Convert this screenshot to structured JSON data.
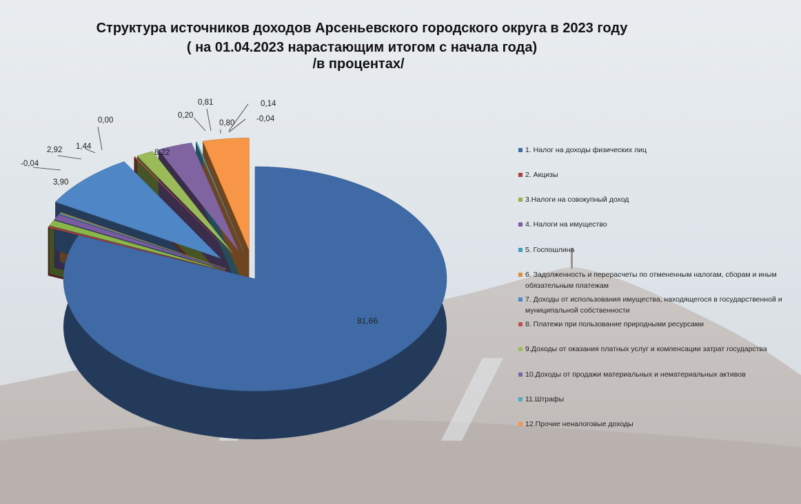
{
  "title": {
    "line1": "Структура источников доходов Арсеньевского городского округа в 2023 году",
    "line2": "( на 01.04.2023 нарастающим итогом с начала года)",
    "line3": "/в процентах/"
  },
  "chart_data": {
    "type": "pie",
    "style": "3d-exploded",
    "legend_position": "right",
    "slices": [
      {
        "name": "1. Налог на  доходы физических лиц",
        "value": 81.66,
        "label": "81,66",
        "color": "#3f6aa6"
      },
      {
        "name": "2. Акцизы",
        "value": 0.2,
        "label": "0,20",
        "color": "#b0413e"
      },
      {
        "name": "3.Налоги на совокупный доход",
        "value": 0.81,
        "label": "0,81",
        "color": "#8cb64a"
      },
      {
        "name": "4. Налоги на имущество",
        "value": 0.8,
        "label": "0,80",
        "color": "#7a5ba0"
      },
      {
        "name": "5. Госпошлина",
        "value": 0.14,
        "label": "0,14",
        "color": "#3aa0b8"
      },
      {
        "name": "6. Задолженность и перерасчеты по отмененным налогам, сборам и иным обязательным платежам",
        "value": -0.04,
        "label": "-0,04",
        "color": "#e08a3c"
      },
      {
        "name": "7. Доходы от использования имущества, находящегося в государственной и муниципальной собственности",
        "value": 8.22,
        "label": "8,22",
        "color": "#4f86c6"
      },
      {
        "name": "8. Платежи при пользование природными ресурсами",
        "value": 0.0,
        "label": "0,00",
        "color": "#c0504d"
      },
      {
        "name": "9.Доходы от оказания платных услуг и  компенсации затрат государства",
        "value": 1.44,
        "label": "1,44",
        "color": "#9bbb59"
      },
      {
        "name": "10.Доходы от продажи материальных и нематериальных активов",
        "value": 2.92,
        "label": "2,92",
        "color": "#8064a2"
      },
      {
        "name": "11.Штрафы",
        "value": -0.04,
        "label": "-0,04",
        "color": "#4bacc6"
      },
      {
        "name": "12.Прочие неналоговые доходы",
        "value": 3.9,
        "label": "3,90",
        "color": "#f79646"
      }
    ]
  }
}
